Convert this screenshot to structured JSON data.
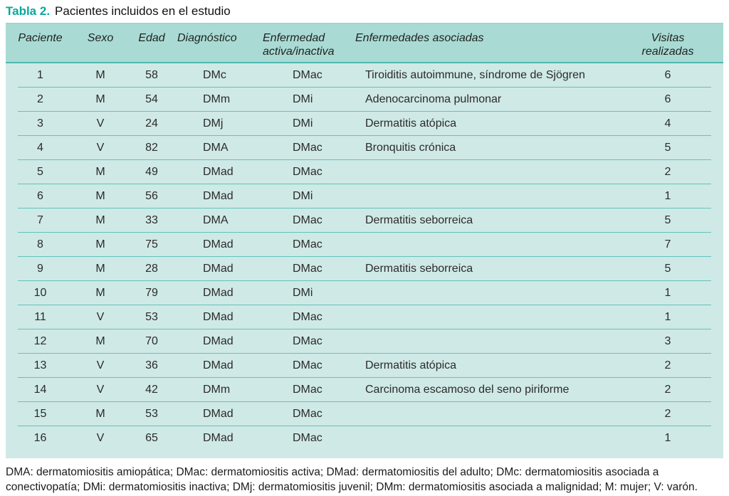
{
  "caption": {
    "label": "Tabla 2.",
    "text": "Pacientes incluidos en el estudio"
  },
  "table": {
    "columns": [
      {
        "label": "Paciente"
      },
      {
        "label": "Sexo"
      },
      {
        "label": "Edad"
      },
      {
        "label": "Diagnóstico"
      },
      {
        "label": "Enfermedad\nactiva/inactiva"
      },
      {
        "label": "Enfermedades asociadas"
      },
      {
        "label": "Visitas\nrealizadas"
      }
    ],
    "rows": [
      [
        "1",
        "M",
        "58",
        "DMc",
        "DMac",
        "Tiroiditis autoimmune, síndrome de Sjögren",
        "6"
      ],
      [
        "2",
        "M",
        "54",
        "DMm",
        "DMi",
        "Adenocarcinoma pulmonar",
        "6"
      ],
      [
        "3",
        "V",
        "24",
        "DMj",
        "DMi",
        "Dermatitis atópica",
        "4"
      ],
      [
        "4",
        "V",
        "82",
        "DMA",
        "DMac",
        "Bronquitis crónica",
        "5"
      ],
      [
        "5",
        "M",
        "49",
        "DMad",
        "DMac",
        "",
        "2"
      ],
      [
        "6",
        "M",
        "56",
        "DMad",
        "DMi",
        "",
        "1"
      ],
      [
        "7",
        "M",
        "33",
        "DMA",
        "DMac",
        "Dermatitis seborreica",
        "5"
      ],
      [
        "8",
        "M",
        "75",
        "DMad",
        "DMac",
        "",
        "7"
      ],
      [
        "9",
        "M",
        "28",
        "DMad",
        "DMac",
        "Dermatitis seborreica",
        "5"
      ],
      [
        "10",
        "M",
        "79",
        "DMad",
        "DMi",
        "",
        "1"
      ],
      [
        "11",
        "V",
        "53",
        "DMad",
        "DMac",
        "",
        "1"
      ],
      [
        "12",
        "M",
        "70",
        "DMad",
        "DMac",
        "",
        "3"
      ],
      [
        "13",
        "V",
        "36",
        "DMad",
        "DMac",
        "Dermatitis atópica",
        "2"
      ],
      [
        "14",
        "V",
        "42",
        "DMm",
        "DMac",
        "Carcinoma escamoso del seno piriforme",
        "2"
      ],
      [
        "15",
        "M",
        "53",
        "DMad",
        "DMac",
        "",
        "2"
      ],
      [
        "16",
        "V",
        "65",
        "DMad",
        "DMac",
        "",
        "1"
      ]
    ]
  },
  "footnote": "DMA: dermatomiositis amiopática; DMac: dermatomiositis activa; DMad: dermatomiositis del adulto; DMc: dermatomiositis asociada a\nconectivopatía; DMi: dermatomiositis inactiva; DMj: dermatomiositis juvenil; DMm: dermatomiositis asociada a malignidad; M: mujer; V: varón.",
  "colors": {
    "accent_teal": "#0aa79c",
    "header_bg": "#a9dbd4",
    "body_bg": "#cfe9e6",
    "header_rule": "#4fb8b1",
    "row_rule": "#63c2bb"
  }
}
